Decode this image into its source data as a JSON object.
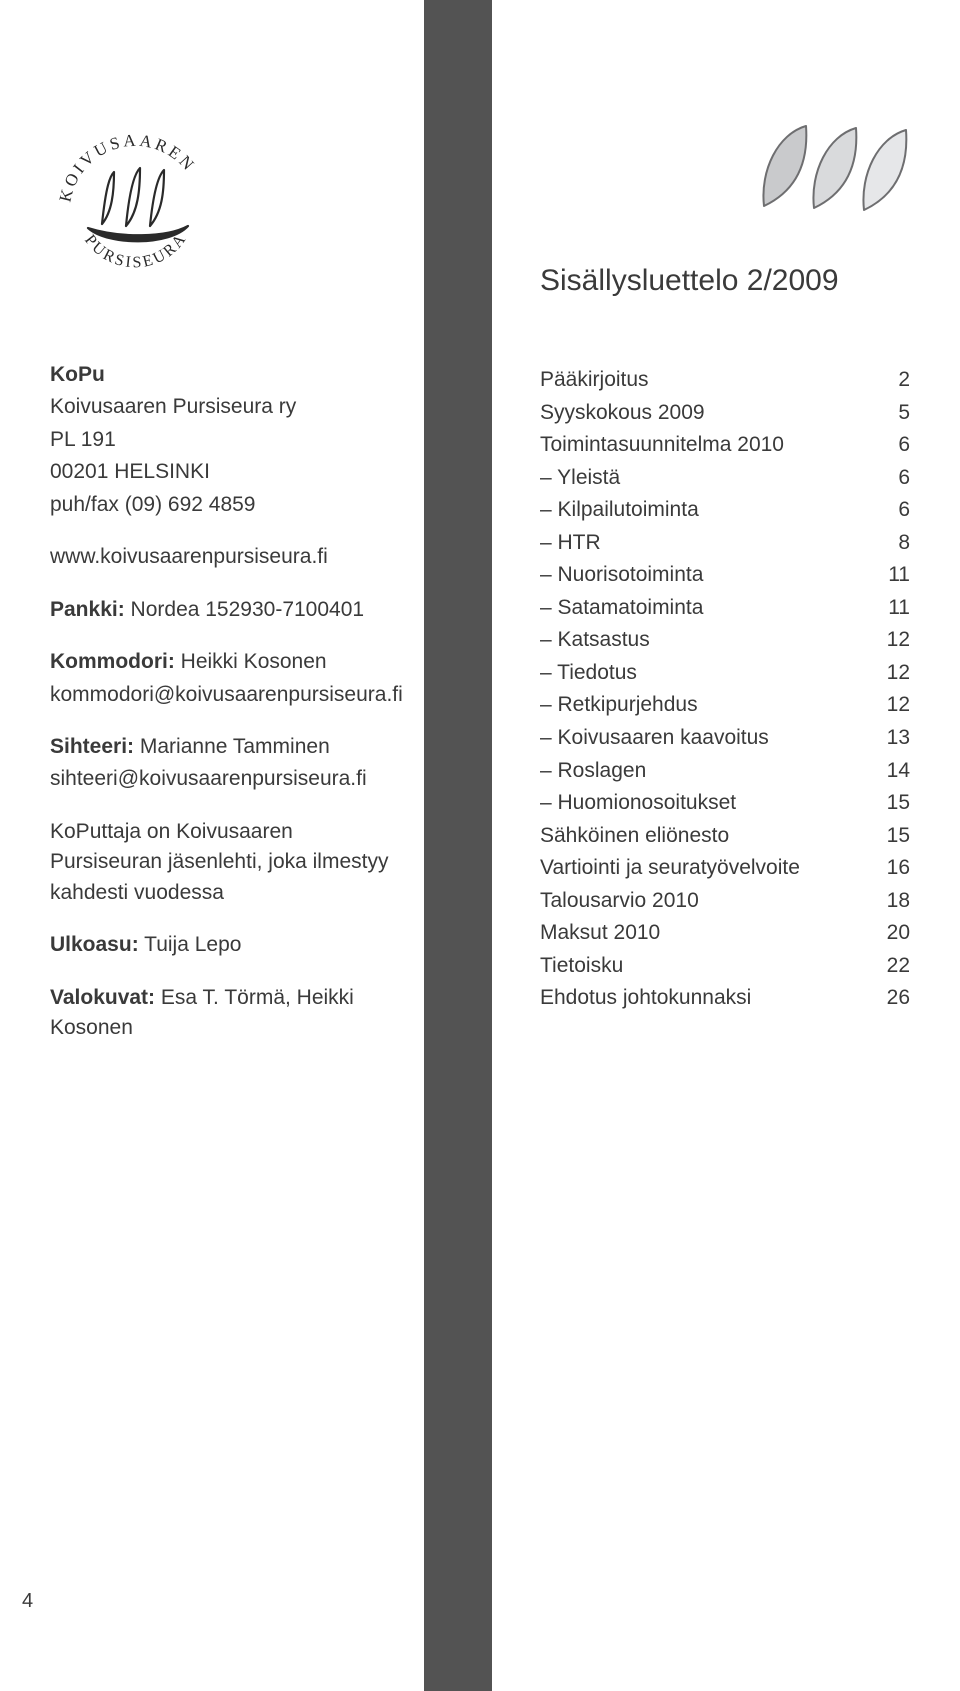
{
  "pageNumber": "4",
  "left": {
    "org_short": "KoPu",
    "org_full": "Koivusaaren Pursiseura ry",
    "po_box": "PL 191",
    "city": "00201 HELSINKI",
    "phone": "puh/fax  (09) 692 4859",
    "website": "www.koivusaarenpursiseura.fi",
    "bank_label": "Pankki:",
    "bank_value": "Nordea 152930-7100401",
    "kommodori_label": "Kommodori:",
    "kommodori_name": "Heikki Kosonen",
    "kommodori_email": "kommodori@koivusaarenpursiseura.fi",
    "sihteeri_label": "Sihteeri:",
    "sihteeri_name": "Marianne Tamminen",
    "sihteeri_email": "sihteeri@koivusaarenpursiseura.fi",
    "koputtaja": "KoPuttaja on Koivusaaren Pursiseuran jäsenlehti, joka ilmestyy kahdesti vuodessa",
    "ulkoasu_label": "Ulkoasu:",
    "ulkoasu_value": "Tuija Lepo",
    "valokuvat_label": "Valokuvat:",
    "valokuvat_value": "Esa T. Törmä, Heikki Kosonen"
  },
  "toc": {
    "heading": "Sisällysluettelo 2/2009",
    "items": [
      {
        "label": "Pääkirjoitus",
        "page": "2",
        "sub": false
      },
      {
        "label": "Syyskokous 2009",
        "page": "5",
        "sub": false
      },
      {
        "label": "Toimintasuunnitelma 2010",
        "page": "6",
        "sub": false
      },
      {
        "label": "Yleistä",
        "page": "6",
        "sub": true
      },
      {
        "label": "Kilpailutoiminta",
        "page": "6",
        "sub": true
      },
      {
        "label": "HTR",
        "page": "8",
        "sub": true
      },
      {
        "label": "Nuorisotoiminta",
        "page": "11",
        "sub": true
      },
      {
        "label": "Satamatoiminta",
        "page": "11",
        "sub": true
      },
      {
        "label": "Katsastus",
        "page": "12",
        "sub": true
      },
      {
        "label": "Tiedotus",
        "page": "12",
        "sub": true
      },
      {
        "label": "Retkipurjehdus",
        "page": "12",
        "sub": true
      },
      {
        "label": "Koivusaaren kaavoitus",
        "page": "13",
        "sub": true
      },
      {
        "label": "Roslagen",
        "page": "14",
        "sub": true
      },
      {
        "label": "Huomionosoitukset",
        "page": "15",
        "sub": true
      },
      {
        "label": "Sähköinen eliönesto",
        "page": "15",
        "sub": false
      },
      {
        "label": "Vartiointi ja seuratyövelvoite",
        "page": "16",
        "sub": false
      },
      {
        "label": "Talousarvio 2010",
        "page": "18",
        "sub": false
      },
      {
        "label": "Maksut 2010",
        "page": "20",
        "sub": false
      },
      {
        "label": "Tietoisku",
        "page": "22",
        "sub": false
      },
      {
        "label": "Ehdotus johtokunnaksi",
        "page": "26",
        "sub": false
      }
    ]
  },
  "style": {
    "spine_color": "#535353",
    "text_color": "#3a3a3a",
    "sail_fill": "#c9cacc",
    "sail_outline": "#6e6e70",
    "logo_stroke": "#2a2a2a"
  }
}
